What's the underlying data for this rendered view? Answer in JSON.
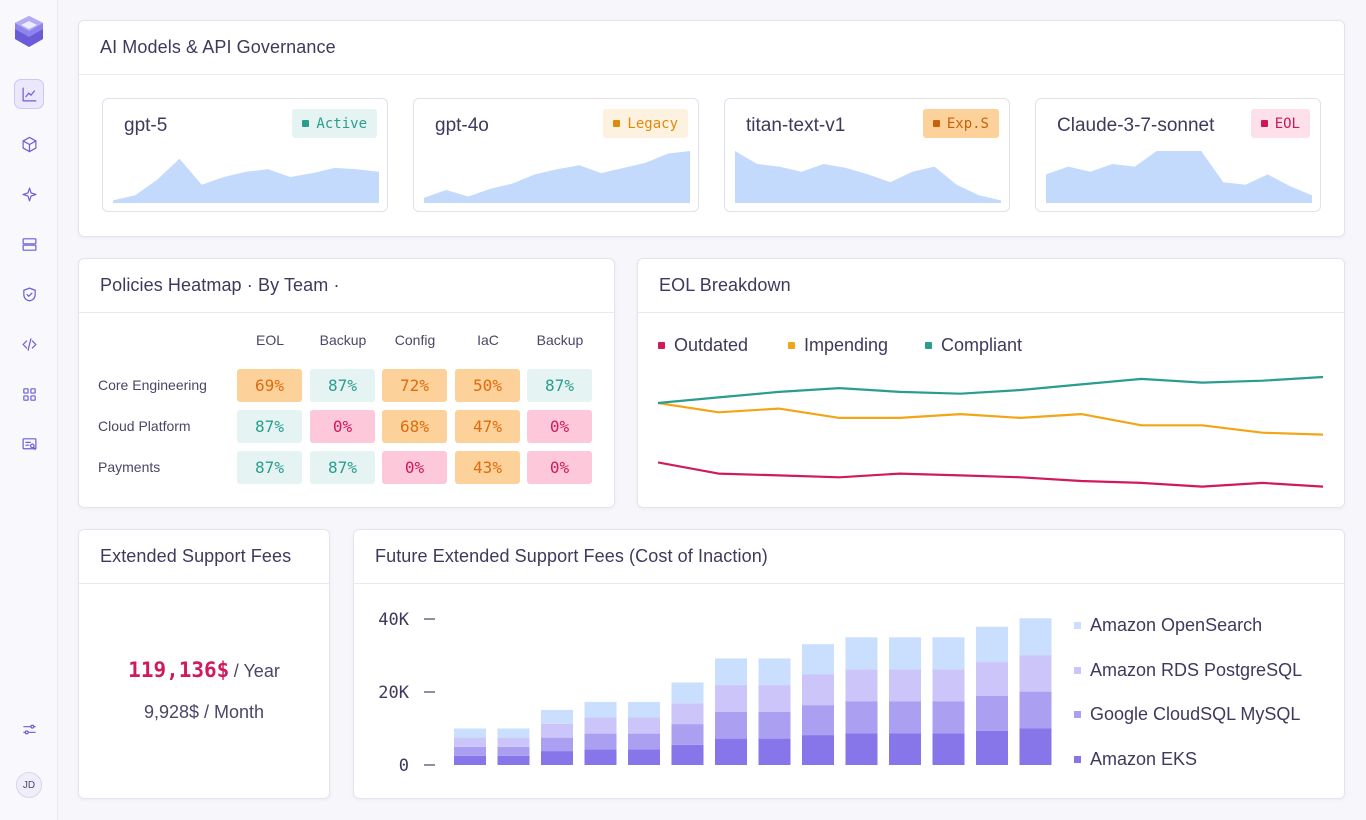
{
  "sidebar": {
    "logo": "stack-logo",
    "items": [
      {
        "icon": "chart-line-icon",
        "active": true
      },
      {
        "icon": "cube-icon"
      },
      {
        "icon": "sparkle-icon"
      },
      {
        "icon": "database-icon"
      },
      {
        "icon": "shield-check-icon"
      },
      {
        "icon": "code-icon"
      },
      {
        "icon": "grid-icon"
      },
      {
        "icon": "report-icon"
      }
    ],
    "settings_icon": "sliders-icon",
    "avatar": "JD"
  },
  "models_panel": {
    "title": "AI Models & API Governance",
    "cards": [
      {
        "name": "gpt-5",
        "status": "Active",
        "badge_bg": "#e5f4f2",
        "badge_fg": "#2a9d8f",
        "dot": "#2a9d8f",
        "trend": [
          2,
          6,
          18,
          34,
          14,
          20,
          24,
          26,
          20,
          23,
          27,
          26,
          24
        ]
      },
      {
        "name": "gpt-4o",
        "status": "Legacy",
        "badge_bg": "#fdf1df",
        "badge_fg": "#e08a0b",
        "dot": "#e08a0b",
        "trend": [
          4,
          10,
          5,
          11,
          15,
          22,
          26,
          29,
          23,
          27,
          31,
          38,
          40
        ]
      },
      {
        "name": "titan-text-v1",
        "status": "Exp.S",
        "badge_bg": "#fdd29a",
        "badge_fg": "#c6620b",
        "dot": "#c6620b",
        "trend": [
          40,
          30,
          28,
          24,
          30,
          27,
          22,
          16,
          24,
          28,
          14,
          6,
          2
        ]
      },
      {
        "name": "Claude-3-7-sonnet",
        "status": "EOL",
        "badge_bg": "#fde0ea",
        "badge_fg": "#cc1656",
        "dot": "#cc1656",
        "trend": [
          22,
          28,
          24,
          30,
          28,
          40,
          40,
          40,
          16,
          14,
          22,
          13,
          6
        ]
      }
    ]
  },
  "heatmap_panel": {
    "title": "Policies Heatmap · By Team ·",
    "columns": [
      "EOL",
      "Backup",
      "Config",
      "IaC",
      "Backup"
    ],
    "rows": [
      {
        "team": "Core Engineering",
        "values": [
          "69%",
          "87%",
          "72%",
          "50%",
          "87%"
        ],
        "levels": [
          "orange",
          "teal",
          "orange",
          "orange",
          "teal"
        ]
      },
      {
        "team": "Cloud Platform",
        "values": [
          "87%",
          "0%",
          "68%",
          "47%",
          "0%"
        ],
        "levels": [
          "teal",
          "red",
          "orange",
          "orange",
          "red"
        ]
      },
      {
        "team": "Payments",
        "values": [
          "87%",
          "87%",
          "0%",
          "43%",
          "0%"
        ],
        "levels": [
          "teal",
          "teal",
          "red",
          "orange",
          "red"
        ]
      }
    ]
  },
  "eol_panel": {
    "title": "EOL Breakdown",
    "chart_data": {
      "type": "line",
      "series": [
        {
          "name": "Outdated",
          "color": "#d1195e",
          "values": [
            42,
            36,
            35,
            34,
            36,
            35,
            34,
            32,
            31,
            29,
            31,
            29
          ]
        },
        {
          "name": "Impending",
          "color": "#f2a516",
          "values": [
            74,
            69,
            71,
            66,
            66,
            68,
            66,
            68,
            62,
            62,
            58,
            57
          ]
        },
        {
          "name": "Compliant",
          "color": "#2a9d8f",
          "values": [
            74,
            77,
            80,
            82,
            80,
            79,
            81,
            84,
            87,
            85,
            86,
            88
          ]
        }
      ]
    }
  },
  "fees_panel": {
    "title": "Extended Support Fees",
    "yearly_value": "119,136$",
    "yearly_unit": "/ Year",
    "monthly": "9,928$ / Month"
  },
  "future_panel": {
    "title": "Future Extended Support Fees (Cost of Inaction)",
    "chart_data": {
      "type": "bar",
      "stacked": true,
      "y_ticks": [
        "40K",
        "20K",
        "0"
      ],
      "ylim": [
        0,
        40000
      ],
      "series": [
        {
          "name": "Amazon EKS",
          "color": "#8676ea",
          "values": [
            2500,
            2500,
            3800,
            4300,
            4300,
            5500,
            7300,
            7300,
            8200,
            8700,
            8700,
            8700,
            9400,
            10000
          ]
        },
        {
          "name": "Google CloudSQL MySQL",
          "color": "#ab9ff2",
          "values": [
            2500,
            2500,
            3700,
            4300,
            4300,
            5700,
            7300,
            7300,
            8200,
            8700,
            8700,
            8700,
            9500,
            10100
          ]
        },
        {
          "name": "Amazon RDS PostgreSQL",
          "color": "#cbc5fa",
          "values": [
            2500,
            2500,
            3800,
            4400,
            4400,
            5700,
            7300,
            7300,
            8400,
            8800,
            8800,
            8800,
            9300,
            10000
          ]
        },
        {
          "name": "Amazon OpenSearch",
          "color": "#cadffd",
          "values": [
            2500,
            2500,
            3800,
            4300,
            4300,
            5700,
            7300,
            7300,
            8300,
            8800,
            8800,
            8800,
            9700,
            10100
          ]
        }
      ],
      "legend_order": [
        "Amazon OpenSearch",
        "Amazon RDS PostgreSQL",
        "Google CloudSQL MySQL",
        "Amazon EKS"
      ]
    }
  }
}
